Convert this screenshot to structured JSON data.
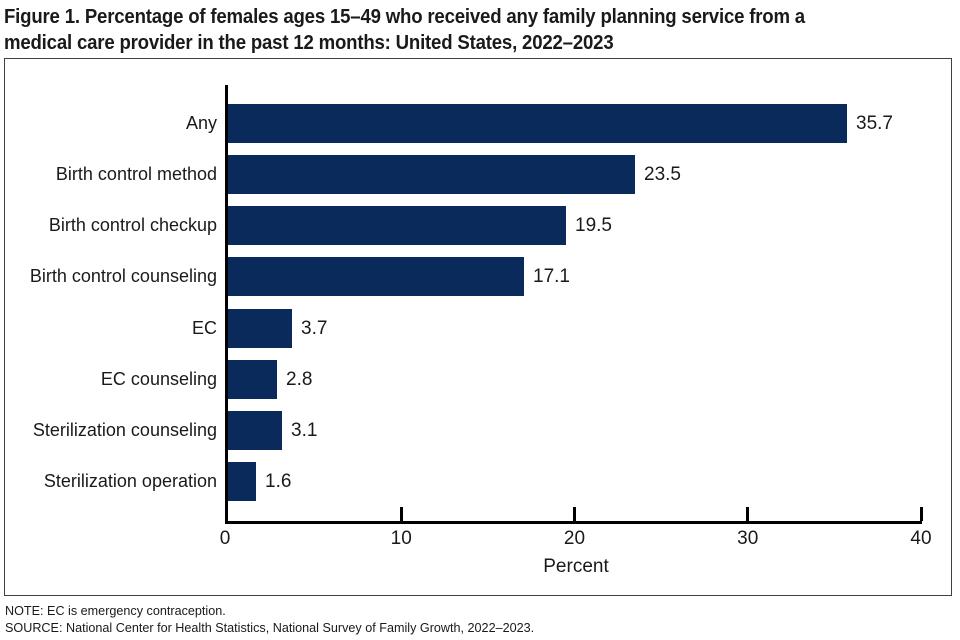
{
  "figure": {
    "title_line1": "Figure 1. Percentage of females ages 15–49 who received any family planning service from a",
    "title_line2": "medical care provider in the past 12 months: United States, 2022–2023",
    "note": "NOTE: EC is emergency contraception.",
    "source": "SOURCE: National Center for Health Statistics, National Survey of Family Growth, 2022–2023."
  },
  "chart_data": {
    "type": "bar",
    "orientation": "horizontal",
    "title": "Percentage of females ages 15-49 who received any family planning service from a medical care provider in the past 12 months: United States, 2022-2023",
    "categories": [
      "Any",
      "Birth control method",
      "Birth control checkup",
      "Birth control counseling",
      "EC",
      "EC counseling",
      "Sterilization counseling",
      "Sterilization operation"
    ],
    "values": [
      35.7,
      23.5,
      19.5,
      17.1,
      3.7,
      2.8,
      3.1,
      1.6
    ],
    "value_labels": [
      "35.7",
      "23.5",
      "19.5",
      "17.1",
      "3.7",
      "2.8",
      "3.1",
      "1.6"
    ],
    "xlabel": "Percent",
    "xlim": [
      0,
      40
    ],
    "xticks": [
      0,
      10,
      20,
      30,
      40
    ],
    "grid": false,
    "legend": "none",
    "bar_color": "#0a2a5c",
    "axis_color": "#000000"
  }
}
